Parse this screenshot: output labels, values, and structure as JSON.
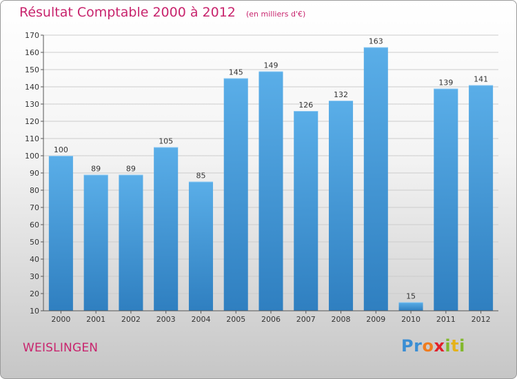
{
  "title": "Résultat Comptable 2000 à 2012",
  "subtitle": "(en milliers d'€)",
  "commune": "WEISLINGEN",
  "logo": {
    "text": "Proxiti",
    "letters": [
      {
        "ch": "P",
        "color": "#3a8ed4"
      },
      {
        "ch": "r",
        "color": "#3a8ed4"
      },
      {
        "ch": "o",
        "color": "#f07c1e"
      },
      {
        "ch": "x",
        "color": "#e2202a"
      },
      {
        "ch": "i",
        "color": "#82b82c"
      },
      {
        "ch": "t",
        "color": "#e5b21a"
      },
      {
        "ch": "i",
        "color": "#82b82c"
      }
    ]
  },
  "colors": {
    "accent": "#c8246d",
    "bar_top": "#5aaee8",
    "bar_bottom": "#2f7fc0",
    "grid": "#cccccc"
  },
  "chart_data": {
    "type": "bar",
    "categories": [
      "2000",
      "2001",
      "2002",
      "2003",
      "2004",
      "2005",
      "2006",
      "2007",
      "2008",
      "2009",
      "2010",
      "2011",
      "2012"
    ],
    "values": [
      100,
      89,
      89,
      105,
      85,
      145,
      149,
      126,
      132,
      163,
      15,
      139,
      141
    ],
    "ylim": [
      10,
      170
    ],
    "yticks": [
      10,
      20,
      30,
      40,
      50,
      60,
      70,
      80,
      90,
      100,
      110,
      120,
      130,
      140,
      150,
      160,
      170
    ],
    "grid": true,
    "xlabel": "",
    "ylabel": ""
  }
}
